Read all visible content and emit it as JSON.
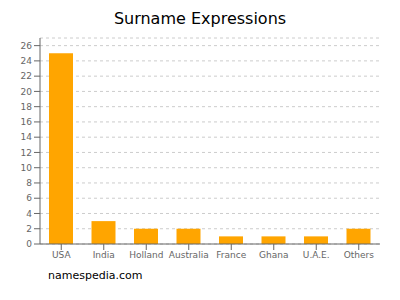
{
  "chart_data": {
    "type": "bar",
    "title": "Surname Expressions",
    "categories": [
      "USA",
      "India",
      "Holland",
      "Australia",
      "France",
      "Ghana",
      "U.A.E.",
      "Others"
    ],
    "values": [
      25,
      3,
      2,
      2,
      1,
      1,
      1,
      2
    ],
    "color": "#FFA500",
    "ylim": [
      0,
      27
    ],
    "yticks": [
      0,
      2,
      4,
      6,
      8,
      10,
      12,
      14,
      16,
      18,
      20,
      22,
      24,
      26
    ],
    "grid": true,
    "annotations": [
      "namespedia.com"
    ]
  }
}
